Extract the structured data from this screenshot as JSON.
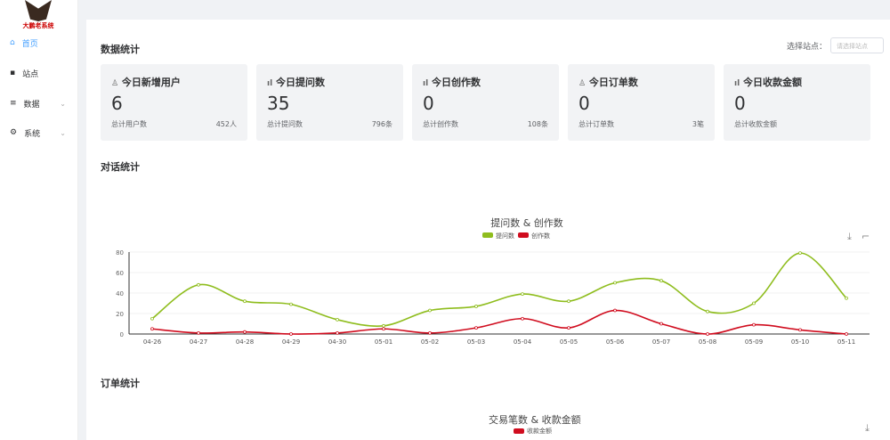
{
  "sidebar": {
    "logo_text": "大鹏老系统",
    "items": [
      {
        "label": "首页",
        "icon": "home-icon",
        "active": true
      },
      {
        "label": "站点",
        "icon": "grid-icon"
      },
      {
        "label": "数据",
        "icon": "list-icon"
      },
      {
        "label": "系统",
        "icon": "gear-icon"
      }
    ]
  },
  "stats": {
    "title": "数据统计",
    "site_label": "选择站点：",
    "site_placeholder": "请选择站点",
    "cards": [
      {
        "title": "今日新增用户",
        "icon": "user-icon",
        "value": "6",
        "total_label": "总计用户数",
        "total": "452人"
      },
      {
        "title": "今日提问数",
        "icon": "bar-chart-icon",
        "value": "35",
        "total_label": "总计提问数",
        "total": "796条"
      },
      {
        "title": "今日创作数",
        "icon": "bar-chart-icon",
        "value": "0",
        "total_label": "总计创作数",
        "total": "108条"
      },
      {
        "title": "今日订单数",
        "icon": "user-icon",
        "value": "0",
        "total_label": "总计订单数",
        "total": "3笔"
      },
      {
        "title": "今日收款金额",
        "icon": "bar-chart-icon",
        "value": "0",
        "total_label": "总计收款金额",
        "total": ""
      }
    ]
  },
  "dialog": {
    "title": "对话统计"
  },
  "orders": {
    "title": "订单统计",
    "chart_title": "交易笔数 & 收款金额",
    "legend": [
      {
        "name": "收款金额",
        "color": "#d00c1e"
      }
    ]
  },
  "chart_data": {
    "type": "line",
    "title": "提问数 & 创作数",
    "ylim": [
      0,
      80
    ],
    "yticks": [
      0,
      20,
      40,
      60,
      80
    ],
    "legend_position": "top",
    "categories": [
      "04-26",
      "04-27",
      "04-28",
      "04-29",
      "04-30",
      "05-01",
      "05-02",
      "05-03",
      "05-04",
      "05-05",
      "05-06",
      "05-07",
      "05-08",
      "05-09",
      "05-10",
      "05-11"
    ],
    "series": [
      {
        "name": "提问数",
        "color": "#8fbd1e",
        "values": [
          15,
          48,
          32,
          29,
          14,
          8,
          23,
          27,
          39,
          32,
          50,
          52,
          22,
          30,
          79,
          35
        ]
      },
      {
        "name": "创作数",
        "color": "#d00c1e",
        "values": [
          5,
          1,
          2,
          0,
          1,
          5,
          1,
          6,
          15,
          6,
          23,
          10,
          0,
          9,
          4,
          0
        ]
      }
    ]
  }
}
